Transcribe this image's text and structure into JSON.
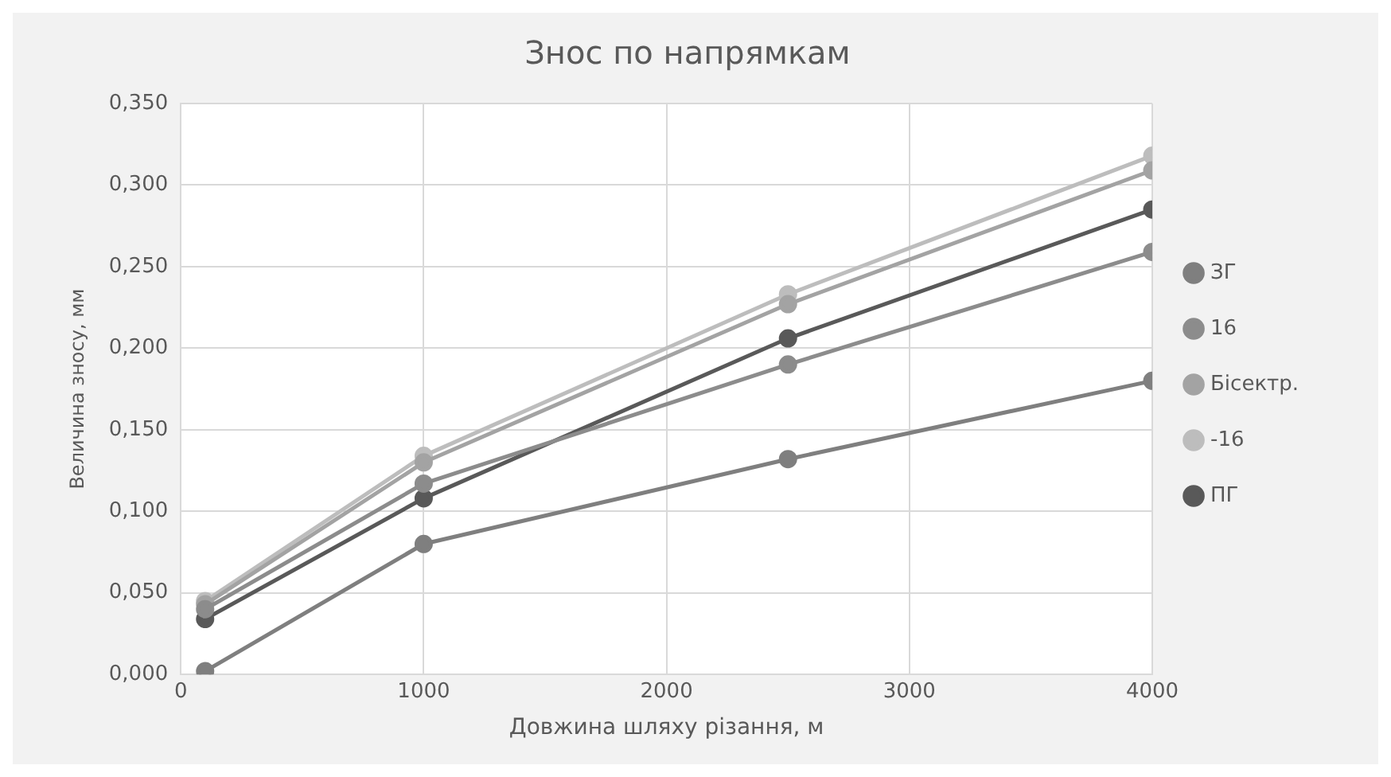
{
  "chart_data": {
    "type": "line",
    "title": "Знос по напрямкам",
    "xlabel": "Довжина шляху різання, м",
    "ylabel": "Величина зносу, мм",
    "x": [
      100,
      1000,
      2500,
      4000
    ],
    "series": [
      {
        "name": "ЗГ",
        "color": "#7f7f7f",
        "values": [
          0.002,
          0.08,
          0.132,
          0.18
        ]
      },
      {
        "name": "16",
        "color": "#8c8c8c",
        "values": [
          0.04,
          0.117,
          0.19,
          0.259
        ]
      },
      {
        "name": "Бісектр.",
        "color": "#a3a3a3",
        "values": [
          0.043,
          0.13,
          0.227,
          0.309
        ]
      },
      {
        "name": "-16",
        "color": "#bdbdbd",
        "values": [
          0.045,
          0.134,
          0.233,
          0.318
        ]
      },
      {
        "name": "ПГ",
        "color": "#595959",
        "values": [
          0.034,
          0.108,
          0.206,
          0.285
        ]
      }
    ],
    "xlim": [
      0,
      4000
    ],
    "xticks": [
      0,
      1000,
      2000,
      3000,
      4000
    ],
    "ylim": [
      0,
      0.35
    ],
    "yticks": [
      {
        "value": 0,
        "label": "0,000"
      },
      {
        "value": 0.05,
        "label": "0,050"
      },
      {
        "value": 0.1,
        "label": "0,100"
      },
      {
        "value": 0.15,
        "label": "0,150"
      },
      {
        "value": 0.2,
        "label": "0,200"
      },
      {
        "value": 0.25,
        "label": "0,250"
      },
      {
        "value": 0.3,
        "label": "0,300"
      },
      {
        "value": 0.35,
        "label": "0,350"
      }
    ],
    "grid": true,
    "legend": "right",
    "marker": "circle",
    "line_style": "solid"
  }
}
